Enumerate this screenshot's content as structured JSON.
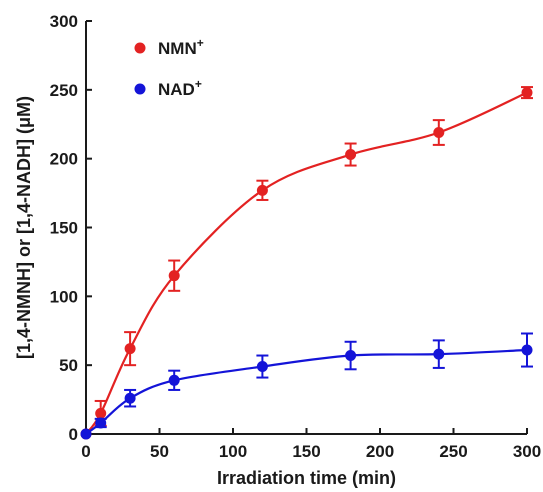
{
  "chart_data": {
    "type": "line",
    "xlabel": "Irradiation time (min)",
    "ylabel": "[1,4-NMNH] or [1,4-NADH] (μM)",
    "xlim": [
      0,
      300
    ],
    "ylim": [
      0,
      300
    ],
    "xticks": [
      0,
      50,
      100,
      150,
      200,
      250,
      300
    ],
    "yticks": [
      0,
      50,
      100,
      150,
      200,
      250,
      300
    ],
    "grid": false,
    "legend_position": "top-left",
    "series": [
      {
        "name": "NMN",
        "name_sup": "+",
        "color": "#e32222",
        "x": [
          0,
          10,
          30,
          60,
          120,
          180,
          240,
          300
        ],
        "y": [
          0,
          15,
          62,
          115,
          177,
          203,
          219,
          248
        ],
        "err": [
          0,
          9,
          12,
          11,
          7,
          8,
          9,
          4
        ]
      },
      {
        "name": "NAD",
        "name_sup": "+",
        "color": "#1414d8",
        "x": [
          0,
          10,
          30,
          60,
          120,
          180,
          240,
          300
        ],
        "y": [
          0,
          8,
          26,
          39,
          49,
          57,
          58,
          61
        ],
        "err": [
          0,
          3,
          6,
          7,
          8,
          10,
          10,
          12
        ]
      }
    ]
  }
}
